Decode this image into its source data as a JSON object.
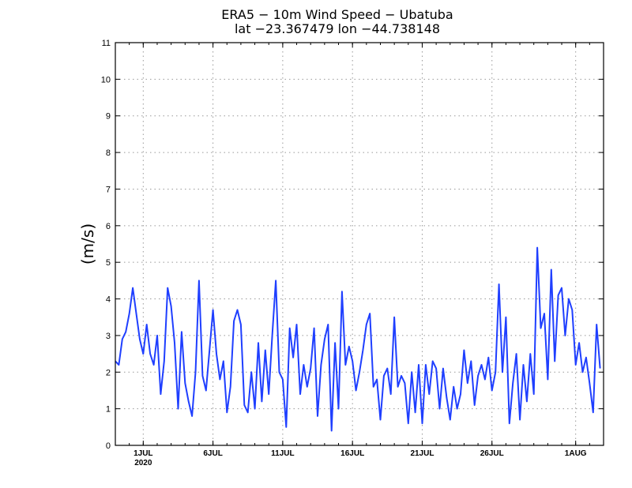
{
  "chart_data": {
    "type": "line",
    "title": "ERA5 − 10m Wind Speed − Ubatuba",
    "subtitle": "lat −23.367479 lon −44.738148",
    "xlabel": "",
    "ylabel": "(m/s)",
    "ylim": [
      0,
      11
    ],
    "yticks": [
      0,
      1,
      2,
      3,
      4,
      5,
      6,
      7,
      8,
      9,
      10,
      11
    ],
    "xlim": [
      "2020-06-29T00:00",
      "2020-08-03T00:00"
    ],
    "xticks": [
      {
        "date": "2020-07-01",
        "label": "1JUL",
        "sublabel": "2020"
      },
      {
        "date": "2020-07-06",
        "label": "6JUL",
        "sublabel": ""
      },
      {
        "date": "2020-07-11",
        "label": "11JUL",
        "sublabel": ""
      },
      {
        "date": "2020-07-16",
        "label": "16JUL",
        "sublabel": ""
      },
      {
        "date": "2020-07-21",
        "label": "21JUL",
        "sublabel": ""
      },
      {
        "date": "2020-07-26",
        "label": "26JUL",
        "sublabel": ""
      },
      {
        "date": "2020-08-01",
        "label": "1AUG",
        "sublabel": ""
      }
    ],
    "grid": true,
    "series": [
      {
        "color": "#1f3fff",
        "points": [
          [
            "2020-06-29T00:00",
            2.3
          ],
          [
            "2020-06-29T06:00",
            2.2
          ],
          [
            "2020-06-29T12:00",
            2.9
          ],
          [
            "2020-06-29T18:00",
            3.1
          ],
          [
            "2020-06-30T00:00",
            3.6
          ],
          [
            "2020-06-30T06:00",
            4.3
          ],
          [
            "2020-06-30T12:00",
            3.6
          ],
          [
            "2020-06-30T18:00",
            2.9
          ],
          [
            "2020-07-01T00:00",
            2.5
          ],
          [
            "2020-07-01T06:00",
            3.3
          ],
          [
            "2020-07-01T12:00",
            2.5
          ],
          [
            "2020-07-01T18:00",
            2.2
          ],
          [
            "2020-07-02T00:00",
            3.0
          ],
          [
            "2020-07-02T06:00",
            1.4
          ],
          [
            "2020-07-02T12:00",
            2.3
          ],
          [
            "2020-07-02T18:00",
            4.3
          ],
          [
            "2020-07-03T00:00",
            3.8
          ],
          [
            "2020-07-03T06:00",
            2.8
          ],
          [
            "2020-07-03T12:00",
            1.0
          ],
          [
            "2020-07-03T18:00",
            3.1
          ],
          [
            "2020-07-04T00:00",
            1.7
          ],
          [
            "2020-07-04T06:00",
            1.2
          ],
          [
            "2020-07-04T12:00",
            0.8
          ],
          [
            "2020-07-04T18:00",
            2.0
          ],
          [
            "2020-07-05T00:00",
            4.5
          ],
          [
            "2020-07-05T06:00",
            1.9
          ],
          [
            "2020-07-05T12:00",
            1.5
          ],
          [
            "2020-07-05T18:00",
            2.6
          ],
          [
            "2020-07-06T00:00",
            3.7
          ],
          [
            "2020-07-06T06:00",
            2.5
          ],
          [
            "2020-07-06T12:00",
            1.8
          ],
          [
            "2020-07-06T18:00",
            2.3
          ],
          [
            "2020-07-07T00:00",
            0.9
          ],
          [
            "2020-07-07T06:00",
            1.6
          ],
          [
            "2020-07-07T12:00",
            3.4
          ],
          [
            "2020-07-07T18:00",
            3.7
          ],
          [
            "2020-07-08T00:00",
            3.3
          ],
          [
            "2020-07-08T06:00",
            1.1
          ],
          [
            "2020-07-08T12:00",
            0.9
          ],
          [
            "2020-07-08T18:00",
            2.0
          ],
          [
            "2020-07-09T00:00",
            1.0
          ],
          [
            "2020-07-09T06:00",
            2.8
          ],
          [
            "2020-07-09T12:00",
            1.2
          ],
          [
            "2020-07-09T18:00",
            2.6
          ],
          [
            "2020-07-10T00:00",
            1.4
          ],
          [
            "2020-07-10T06:00",
            3.0
          ],
          [
            "2020-07-10T12:00",
            4.5
          ],
          [
            "2020-07-10T18:00",
            2.0
          ],
          [
            "2020-07-11T00:00",
            1.8
          ],
          [
            "2020-07-11T06:00",
            0.5
          ],
          [
            "2020-07-11T12:00",
            3.2
          ],
          [
            "2020-07-11T18:00",
            2.4
          ],
          [
            "2020-07-12T00:00",
            3.3
          ],
          [
            "2020-07-12T06:00",
            1.4
          ],
          [
            "2020-07-12T12:00",
            2.2
          ],
          [
            "2020-07-12T18:00",
            1.6
          ],
          [
            "2020-07-13T00:00",
            2.1
          ],
          [
            "2020-07-13T06:00",
            3.2
          ],
          [
            "2020-07-13T12:00",
            0.8
          ],
          [
            "2020-07-13T18:00",
            2.2
          ],
          [
            "2020-07-14T00:00",
            2.9
          ],
          [
            "2020-07-14T06:00",
            3.3
          ],
          [
            "2020-07-14T12:00",
            0.4
          ],
          [
            "2020-07-14T18:00",
            2.8
          ],
          [
            "2020-07-15T00:00",
            1.0
          ],
          [
            "2020-07-15T06:00",
            4.2
          ],
          [
            "2020-07-15T12:00",
            2.2
          ],
          [
            "2020-07-15T18:00",
            2.7
          ],
          [
            "2020-07-16T00:00",
            2.3
          ],
          [
            "2020-07-16T06:00",
            1.5
          ],
          [
            "2020-07-16T12:00",
            2.0
          ],
          [
            "2020-07-16T18:00",
            2.6
          ],
          [
            "2020-07-17T00:00",
            3.3
          ],
          [
            "2020-07-17T06:00",
            3.6
          ],
          [
            "2020-07-17T12:00",
            1.6
          ],
          [
            "2020-07-17T18:00",
            1.8
          ],
          [
            "2020-07-18T00:00",
            0.7
          ],
          [
            "2020-07-18T06:00",
            1.9
          ],
          [
            "2020-07-18T12:00",
            2.1
          ],
          [
            "2020-07-18T18:00",
            1.4
          ],
          [
            "2020-07-19T00:00",
            3.5
          ],
          [
            "2020-07-19T06:00",
            1.6
          ],
          [
            "2020-07-19T12:00",
            1.9
          ],
          [
            "2020-07-19T18:00",
            1.7
          ],
          [
            "2020-07-20T00:00",
            0.6
          ],
          [
            "2020-07-20T06:00",
            2.0
          ],
          [
            "2020-07-20T12:00",
            0.9
          ],
          [
            "2020-07-20T18:00",
            2.2
          ],
          [
            "2020-07-21T00:00",
            0.6
          ],
          [
            "2020-07-21T06:00",
            2.2
          ],
          [
            "2020-07-21T12:00",
            1.4
          ],
          [
            "2020-07-21T18:00",
            2.3
          ],
          [
            "2020-07-22T00:00",
            2.1
          ],
          [
            "2020-07-22T06:00",
            1.0
          ],
          [
            "2020-07-22T12:00",
            2.1
          ],
          [
            "2020-07-22T18:00",
            1.3
          ],
          [
            "2020-07-23T00:00",
            0.7
          ],
          [
            "2020-07-23T06:00",
            1.6
          ],
          [
            "2020-07-23T12:00",
            1.0
          ],
          [
            "2020-07-23T18:00",
            1.4
          ],
          [
            "2020-07-24T00:00",
            2.6
          ],
          [
            "2020-07-24T06:00",
            1.7
          ],
          [
            "2020-07-24T12:00",
            2.3
          ],
          [
            "2020-07-24T18:00",
            1.1
          ],
          [
            "2020-07-25T00:00",
            1.9
          ],
          [
            "2020-07-25T06:00",
            2.2
          ],
          [
            "2020-07-25T12:00",
            1.8
          ],
          [
            "2020-07-25T18:00",
            2.4
          ],
          [
            "2020-07-26T00:00",
            1.5
          ],
          [
            "2020-07-26T06:00",
            2.0
          ],
          [
            "2020-07-26T12:00",
            4.4
          ],
          [
            "2020-07-26T18:00",
            2.0
          ],
          [
            "2020-07-27T00:00",
            3.5
          ],
          [
            "2020-07-27T06:00",
            0.6
          ],
          [
            "2020-07-27T12:00",
            1.7
          ],
          [
            "2020-07-27T18:00",
            2.5
          ],
          [
            "2020-07-28T00:00",
            0.7
          ],
          [
            "2020-07-28T06:00",
            2.2
          ],
          [
            "2020-07-28T12:00",
            1.2
          ],
          [
            "2020-07-28T18:00",
            2.5
          ],
          [
            "2020-07-29T00:00",
            1.4
          ],
          [
            "2020-07-29T06:00",
            5.4
          ],
          [
            "2020-07-29T12:00",
            3.2
          ],
          [
            "2020-07-29T18:00",
            3.6
          ],
          [
            "2020-07-30T00:00",
            1.8
          ],
          [
            "2020-07-30T06:00",
            4.8
          ],
          [
            "2020-07-30T12:00",
            2.3
          ],
          [
            "2020-07-30T18:00",
            4.1
          ],
          [
            "2020-07-31T00:00",
            4.3
          ],
          [
            "2020-07-31T06:00",
            3.0
          ],
          [
            "2020-07-31T12:00",
            4.0
          ],
          [
            "2020-07-31T18:00",
            3.7
          ],
          [
            "2020-08-01T00:00",
            2.2
          ],
          [
            "2020-08-01T06:00",
            2.8
          ],
          [
            "2020-08-01T12:00",
            2.0
          ],
          [
            "2020-08-01T18:00",
            2.4
          ],
          [
            "2020-08-02T00:00",
            1.7
          ],
          [
            "2020-08-02T06:00",
            0.9
          ],
          [
            "2020-08-02T12:00",
            3.3
          ],
          [
            "2020-08-02T18:00",
            2.1
          ]
        ]
      }
    ]
  }
}
